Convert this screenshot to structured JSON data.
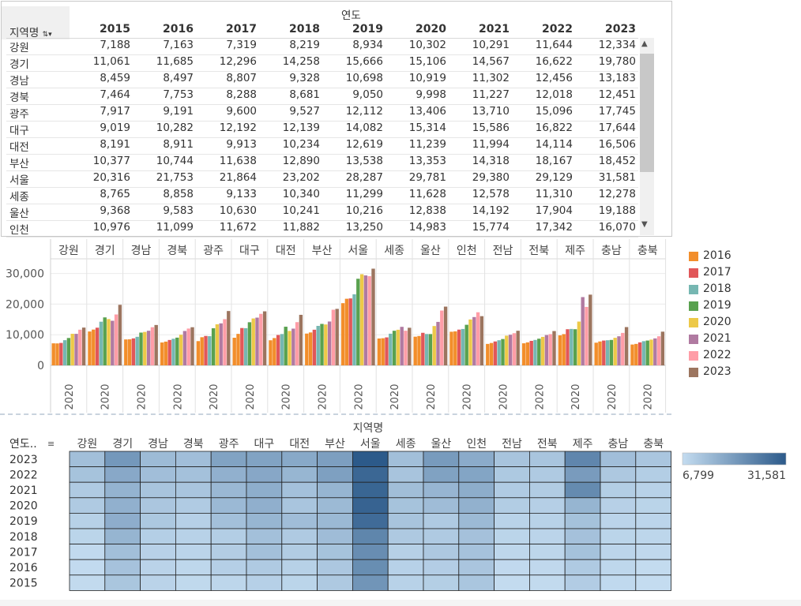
{
  "table": {
    "row_header": "지역명",
    "col_group_header": "연도",
    "years": [
      "2015",
      "2016",
      "2017",
      "2018",
      "2019",
      "2020",
      "2021",
      "2022",
      "2023"
    ],
    "rows": [
      {
        "region": "강원",
        "values": [
          "7,188",
          "7,163",
          "7,319",
          "8,219",
          "8,934",
          "10,302",
          "10,291",
          "11,644",
          "12,334"
        ]
      },
      {
        "region": "경기",
        "values": [
          "11,061",
          "11,685",
          "12,296",
          "14,258",
          "15,666",
          "15,106",
          "14,567",
          "16,622",
          "19,780"
        ]
      },
      {
        "region": "경남",
        "values": [
          "8,459",
          "8,497",
          "8,807",
          "9,328",
          "10,698",
          "10,919",
          "11,302",
          "12,456",
          "13,183"
        ]
      },
      {
        "region": "경북",
        "values": [
          "7,464",
          "7,753",
          "8,288",
          "8,681",
          "9,050",
          "9,998",
          "11,227",
          "12,018",
          "12,451"
        ]
      },
      {
        "region": "광주",
        "values": [
          "7,917",
          "9,191",
          "9,600",
          "9,527",
          "12,112",
          "13,406",
          "13,710",
          "15,096",
          "17,745"
        ]
      },
      {
        "region": "대구",
        "values": [
          "9,019",
          "10,282",
          "12,192",
          "12,139",
          "14,082",
          "15,314",
          "15,586",
          "16,822",
          "17,644"
        ]
      },
      {
        "region": "대전",
        "values": [
          "8,191",
          "8,911",
          "9,913",
          "10,234",
          "12,619",
          "11,239",
          "11,994",
          "14,114",
          "16,506"
        ]
      },
      {
        "region": "부산",
        "values": [
          "10,377",
          "10,744",
          "11,638",
          "12,890",
          "13,538",
          "13,353",
          "14,318",
          "18,167",
          "18,452"
        ]
      },
      {
        "region": "서울",
        "values": [
          "20,316",
          "21,753",
          "21,864",
          "23,202",
          "28,287",
          "29,781",
          "29,380",
          "29,129",
          "31,581"
        ]
      },
      {
        "region": "세종",
        "values": [
          "8,765",
          "8,858",
          "9,133",
          "10,340",
          "11,299",
          "11,628",
          "12,578",
          "11,310",
          "12,278"
        ]
      },
      {
        "region": "울산",
        "values": [
          "9,368",
          "9,583",
          "10,630",
          "10,241",
          "10,216",
          "12,838",
          "14,192",
          "17,904",
          "19,188"
        ]
      },
      {
        "region": "인천",
        "values": [
          "10,976",
          "11,099",
          "11,672",
          "11,882",
          "13,250",
          "14,983",
          "15,774",
          "17,342",
          "16,070"
        ]
      }
    ],
    "scroll_up_icon": "▲",
    "scroll_down_icon": "▼"
  },
  "chart_data": [
    {
      "type": "bar",
      "title": "",
      "categories": [
        "강원",
        "경기",
        "경남",
        "경북",
        "광주",
        "대구",
        "대전",
        "부산",
        "서울",
        "세종",
        "울산",
        "인천",
        "전남",
        "전북",
        "제주",
        "충남",
        "충북"
      ],
      "x_tick_label": "2020",
      "ylabel": "",
      "yticks": [
        "30,000",
        "20,000",
        "10,000",
        "0"
      ],
      "ylim": [
        0,
        33000
      ],
      "series": [
        {
          "name": "2015",
          "color": "#f28e2b",
          "values": [
            7188,
            11061,
            8459,
            7464,
            7917,
            9019,
            8191,
            10377,
            20316,
            8765,
            9368,
            10976,
            7000,
            7200,
            9800,
            7400,
            6800
          ]
        },
        {
          "name": "2016",
          "color": "#f28e2b",
          "values": [
            7163,
            11685,
            8497,
            7753,
            9191,
            10282,
            8911,
            10744,
            21753,
            8858,
            9583,
            11099,
            7300,
            7500,
            10200,
            7800,
            7000
          ]
        },
        {
          "name": "2017",
          "color": "#e15759",
          "values": [
            7319,
            12296,
            8807,
            8288,
            9600,
            12192,
            9913,
            11638,
            21864,
            9133,
            10630,
            11672,
            7800,
            8000,
            11800,
            8100,
            7500
          ]
        },
        {
          "name": "2018",
          "color": "#76b7b2",
          "values": [
            8219,
            14258,
            9328,
            8681,
            9527,
            12139,
            10234,
            12890,
            23202,
            10340,
            10241,
            11882,
            8200,
            8300,
            11900,
            8200,
            7900
          ]
        },
        {
          "name": "2019",
          "color": "#59a14f",
          "values": [
            8934,
            15666,
            10698,
            9050,
            12112,
            14082,
            12619,
            13538,
            28287,
            11299,
            10216,
            13250,
            8600,
            8700,
            11800,
            8300,
            8100
          ]
        },
        {
          "name": "2020",
          "color": "#edc948",
          "values": [
            10302,
            15106,
            10919,
            9998,
            13406,
            15314,
            11239,
            13353,
            29781,
            11628,
            12838,
            14983,
            9700,
            9300,
            14300,
            9000,
            8400
          ]
        },
        {
          "name": "2021",
          "color": "#b07aa1",
          "values": [
            10291,
            14567,
            11302,
            11227,
            13710,
            15586,
            11994,
            14318,
            29380,
            12578,
            14192,
            15774,
            10000,
            9900,
            22300,
            9500,
            8800
          ]
        },
        {
          "name": "2022",
          "color": "#ff9da7",
          "values": [
            11644,
            16622,
            12456,
            12018,
            15096,
            16822,
            14114,
            18167,
            29129,
            11310,
            17904,
            17342,
            10500,
            10200,
            19100,
            10600,
            9500
          ]
        },
        {
          "name": "2023",
          "color": "#9c755f",
          "values": [
            12334,
            19780,
            13183,
            12451,
            17745,
            17644,
            16506,
            18452,
            31581,
            12278,
            19188,
            16070,
            11300,
            11200,
            23100,
            12500,
            11000
          ]
        }
      ]
    },
    {
      "type": "heatmap",
      "title": "지역명",
      "row_header": "연도..",
      "sort_icon": "sort-icon",
      "x": [
        "강원",
        "경기",
        "경남",
        "경북",
        "광주",
        "대구",
        "대전",
        "부산",
        "서울",
        "세종",
        "울산",
        "인천",
        "전남",
        "전북",
        "제주",
        "충남",
        "충북"
      ],
      "y": [
        "2023",
        "2022",
        "2021",
        "2020",
        "2019",
        "2018",
        "2017",
        "2016",
        "2015"
      ],
      "min": 6799,
      "max": 31581,
      "min_label": "6,799",
      "max_label": "31,581",
      "color_low": "#c4dcf0",
      "color_high": "#2c5a8a"
    }
  ],
  "legend": {
    "items": [
      {
        "label": "2016",
        "color": "#f28e2b"
      },
      {
        "label": "2017",
        "color": "#e15759"
      },
      {
        "label": "2018",
        "color": "#76b7b2"
      },
      {
        "label": "2019",
        "color": "#59a14f"
      },
      {
        "label": "2020",
        "color": "#edc948"
      },
      {
        "label": "2021",
        "color": "#b07aa1"
      },
      {
        "label": "2022",
        "color": "#ff9da7"
      },
      {
        "label": "2023",
        "color": "#9c755f"
      }
    ]
  }
}
